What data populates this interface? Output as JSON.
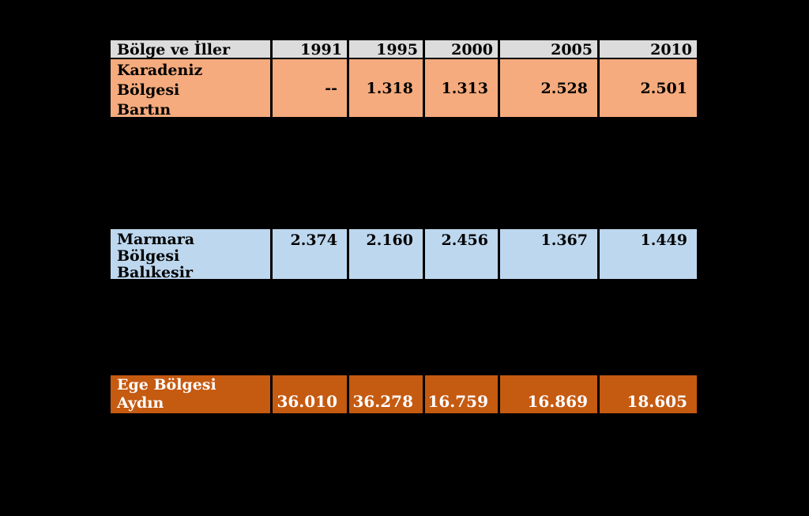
{
  "table": {
    "header": {
      "region_label": "Bölge ve İller",
      "years": [
        "1991",
        "1995",
        "2000",
        "2005",
        "2010"
      ]
    },
    "rows": [
      {
        "lines": [
          "Karadeniz",
          "Bölgesi",
          "Bartın"
        ],
        "values": [
          "--",
          "1.318",
          "1.313",
          "2.528",
          "2.501"
        ]
      },
      {
        "lines": [
          "Marmara",
          "Bölgesi",
          "Balıkesir"
        ],
        "values": [
          "2.374",
          "2.160",
          "2.456",
          "1.367",
          "1.449"
        ]
      },
      {
        "lines": [
          "Ege Bölgesi",
          "Aydın"
        ],
        "values": [
          "36.010",
          "36.278",
          "16.759",
          "16.869",
          "18.605"
        ]
      }
    ],
    "colors": {
      "background": "#000000",
      "border": "#000000",
      "header_bg": "#dcdcdc",
      "header_text": "#000000",
      "karadeniz_row_bg": "#f5ab7d",
      "marmara_row_bg": "#bdd7ee",
      "ege_row_bg": "#c55a11",
      "ege_row_text": "#ffffff"
    }
  },
  "chart_data": {
    "type": "table",
    "title": "Bölge ve İller",
    "columns": [
      "Bölge ve İller",
      "1991",
      "1995",
      "2000",
      "2005",
      "2010"
    ],
    "rows": [
      {
        "label": "Karadeniz Bölgesi Bartın",
        "display_values": [
          "--",
          "1.318",
          "1.313",
          "2.528",
          "2.501"
        ],
        "values": [
          null,
          1318,
          1313,
          2528,
          2501
        ]
      },
      {
        "label": "Marmara Bölgesi Balıkesir",
        "display_values": [
          "2.374",
          "2.160",
          "2.456",
          "1.367",
          "1.449"
        ],
        "values": [
          2374,
          2160,
          2456,
          1367,
          1449
        ]
      },
      {
        "label": "Ege Bölgesi Aydın",
        "display_values": [
          "36.010",
          "36.278",
          "16.759",
          "16.869",
          "18.605"
        ],
        "values": [
          36010,
          36278,
          16759,
          16869,
          18605
        ]
      }
    ],
    "layout": {
      "background": "black",
      "visible_row_styles": [
        "salmon",
        "light-blue",
        "dark-orange"
      ],
      "gaps_between_rows": true
    }
  }
}
